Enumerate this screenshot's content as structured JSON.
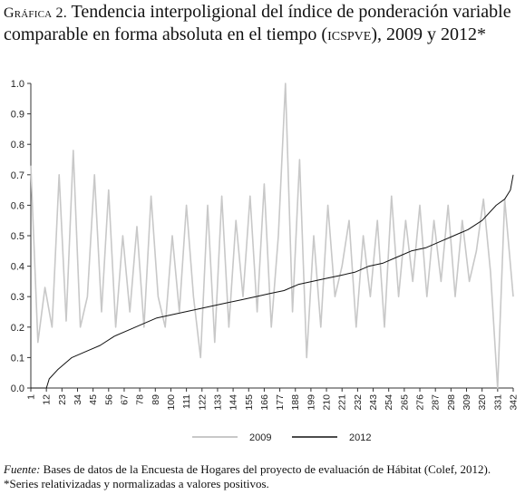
{
  "title": {
    "prefix": "Gráfica 2.",
    "text_main": "Tendencia interpoligional del índice de ponderación variable comparable en forma absoluta en el tiempo (",
    "abbreviation": "icspve",
    "text_end": "), 2009 y 2012*"
  },
  "footer": {
    "source_label": "Fuente:",
    "source_text": " Bases de datos de la Encuesta de Hogares del proyecto de evaluación de Hábitat (Colef, 2012).",
    "note": "*Series relativizadas y normalizadas a valores positivos."
  },
  "colors": {
    "series_2009": "#c8c8c8",
    "series_2012": "#111111",
    "axis": "#333333"
  },
  "chart_data": {
    "type": "line",
    "title": "",
    "xlabel": "",
    "ylabel": "",
    "x_range": [
      1,
      342
    ],
    "ylim": [
      0,
      1
    ],
    "y_ticks": [
      "0.0",
      "0.1",
      "0.2",
      "0.3",
      "0.4",
      "0.5",
      "0.6",
      "0.7",
      "0.8",
      "0.9",
      "1.0"
    ],
    "x_tick_labels": [
      "1",
      "12",
      "23",
      "34",
      "45",
      "56",
      "67",
      "78",
      "89",
      "100",
      "111",
      "122",
      "133",
      "144",
      "155",
      "166",
      "177",
      "188",
      "199",
      "210",
      "221",
      "232",
      "243",
      "254",
      "265",
      "276",
      "287",
      "298",
      "309",
      "320",
      "331",
      "342"
    ],
    "grid": false,
    "legend_position": "bottom-center",
    "series": [
      {
        "name": "2009",
        "note": "irregular series, values sampled every ~5 observations",
        "x": [
          1,
          6,
          11,
          16,
          21,
          26,
          31,
          36,
          41,
          46,
          51,
          56,
          61,
          66,
          71,
          76,
          81,
          86,
          91,
          96,
          101,
          106,
          111,
          116,
          121,
          126,
          131,
          136,
          141,
          146,
          151,
          156,
          161,
          166,
          171,
          176,
          181,
          186,
          191,
          196,
          201,
          206,
          211,
          216,
          221,
          226,
          231,
          236,
          241,
          246,
          251,
          256,
          261,
          266,
          271,
          276,
          281,
          286,
          291,
          296,
          301,
          306,
          311,
          316,
          321,
          326,
          331,
          336,
          342
        ],
        "values": [
          0.73,
          0.15,
          0.33,
          0.2,
          0.7,
          0.22,
          0.78,
          0.2,
          0.3,
          0.7,
          0.25,
          0.65,
          0.2,
          0.5,
          0.25,
          0.53,
          0.2,
          0.63,
          0.3,
          0.2,
          0.5,
          0.25,
          0.6,
          0.3,
          0.1,
          0.6,
          0.15,
          0.63,
          0.2,
          0.55,
          0.3,
          0.63,
          0.25,
          0.67,
          0.2,
          0.5,
          1.0,
          0.25,
          0.75,
          0.1,
          0.5,
          0.2,
          0.6,
          0.3,
          0.4,
          0.55,
          0.2,
          0.5,
          0.3,
          0.55,
          0.2,
          0.63,
          0.3,
          0.55,
          0.35,
          0.6,
          0.3,
          0.55,
          0.35,
          0.6,
          0.3,
          0.55,
          0.35,
          0.45,
          0.62,
          0.38,
          0.0,
          0.62,
          0.3
        ]
      },
      {
        "name": "2012",
        "note": "monotonically increasing series",
        "x": [
          1,
          12,
          14,
          20,
          30,
          40,
          50,
          60,
          70,
          80,
          90,
          100,
          110,
          120,
          130,
          140,
          150,
          160,
          170,
          180,
          190,
          200,
          210,
          220,
          230,
          240,
          250,
          260,
          270,
          280,
          290,
          300,
          310,
          320,
          330,
          336,
          340,
          342
        ],
        "values": [
          0.0,
          0.0,
          0.03,
          0.06,
          0.1,
          0.12,
          0.14,
          0.17,
          0.19,
          0.21,
          0.23,
          0.24,
          0.25,
          0.26,
          0.27,
          0.28,
          0.29,
          0.3,
          0.31,
          0.32,
          0.34,
          0.35,
          0.36,
          0.37,
          0.38,
          0.4,
          0.41,
          0.43,
          0.45,
          0.46,
          0.48,
          0.5,
          0.52,
          0.55,
          0.6,
          0.62,
          0.65,
          0.7
        ]
      }
    ]
  }
}
